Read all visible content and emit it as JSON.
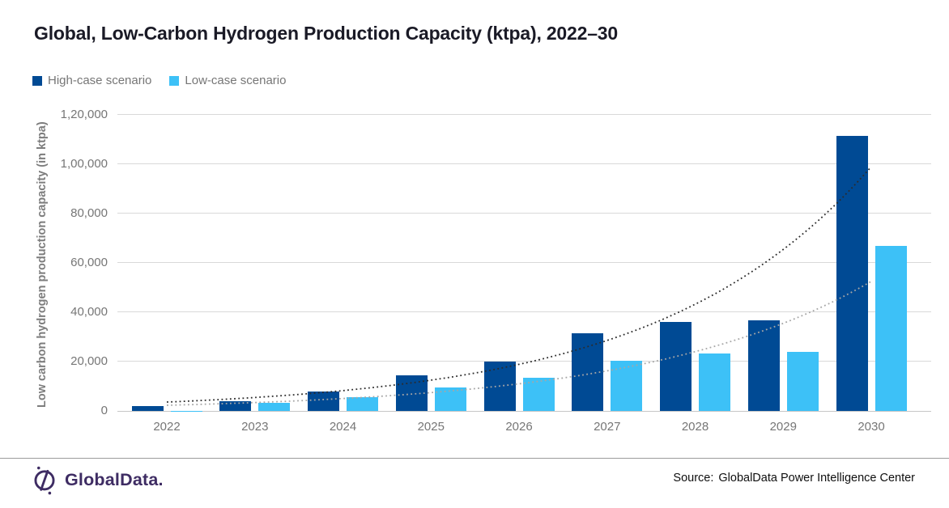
{
  "header": {
    "title": "Global, Low-Carbon Hydrogen Production Capacity (ktpa), 2022–30"
  },
  "chart_data": {
    "type": "bar",
    "title": "Global, Low-Carbon Hydrogen Production Capacity (ktpa), 2022–30",
    "categories": [
      "2022",
      "2023",
      "2024",
      "2025",
      "2026",
      "2027",
      "2028",
      "2029",
      "2030"
    ],
    "series": [
      {
        "name": "High-case scenario",
        "color": "#004a94",
        "values": [
          2000,
          4000,
          8000,
          14400,
          20100,
          31500,
          36200,
          36800,
          111500
        ]
      },
      {
        "name": "Low-case scenario",
        "color": "#3dc1f7",
        "values": [
          150,
          3400,
          5700,
          9600,
          13400,
          20300,
          23300,
          23800,
          66800
        ]
      }
    ],
    "trendlines": [
      {
        "series": "High-case scenario",
        "style": "dotted",
        "color": "#2b2b2b",
        "start_value": 3600,
        "end_value": 99000
      },
      {
        "series": "Low-case scenario",
        "style": "dotted",
        "color": "#a6a6a6",
        "start_value": 2300,
        "end_value": 52500
      }
    ],
    "xlabel": "",
    "ylabel": "Low carbon hydrogen production capacity (in ktpa)",
    "ylim": [
      0,
      120000
    ],
    "ytick_interval": 20000,
    "ytick_labels": [
      "0",
      "20,000",
      "40,000",
      "60,000",
      "80,000",
      "1,00,000",
      "1,20,000"
    ],
    "grid": true,
    "legend_position": "top-left"
  },
  "footer": {
    "logo_text": "GlobalData.",
    "source_label": "Source:",
    "source_text": "GlobalData Power Intelligence Center"
  }
}
